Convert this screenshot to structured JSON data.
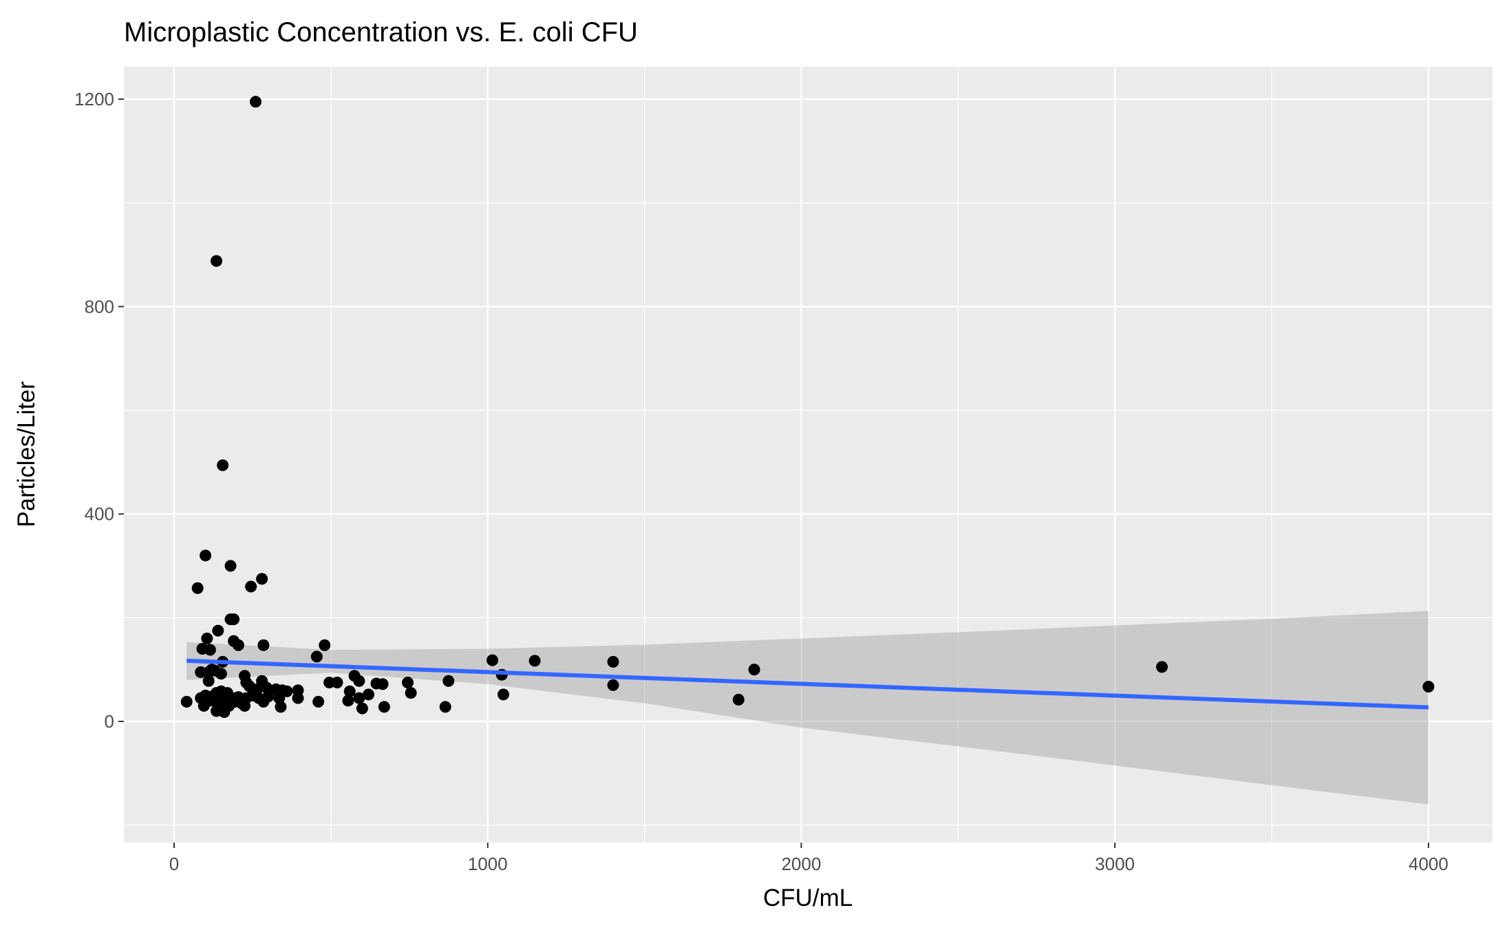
{
  "chart_data": {
    "type": "scatter",
    "title": "Microplastic Concentration vs. E. coli CFU",
    "xlabel": "CFU/mL",
    "ylabel": "Particles/Liter",
    "xlim": [
      -160,
      4160
    ],
    "ylim": [
      -225,
      1265
    ],
    "x_ticks": [
      0,
      1000,
      2000,
      3000,
      4000
    ],
    "x_tick_labels": [
      "0",
      "1000",
      "2000",
      "3000",
      "4000"
    ],
    "y_ticks": [
      0,
      400,
      800,
      1200
    ],
    "y_tick_labels": [
      "0",
      "400",
      "800",
      "1200"
    ],
    "x_minor_gridlines": [
      500,
      1500,
      2500,
      3500
    ],
    "y_minor_gridlines": [
      -200,
      200,
      600,
      1000
    ],
    "grid": true,
    "panel_background": "#ebebeb",
    "grid_color": "#ffffff",
    "point_color": "#000000",
    "points": [
      [
        260,
        1195
      ],
      [
        135,
        888
      ],
      [
        155,
        494
      ],
      [
        100,
        320
      ],
      [
        180,
        300
      ],
      [
        280,
        275
      ],
      [
        245,
        260
      ],
      [
        75,
        257
      ],
      [
        180,
        197
      ],
      [
        190,
        197
      ],
      [
        140,
        175
      ],
      [
        105,
        160
      ],
      [
        190,
        155
      ],
      [
        205,
        147
      ],
      [
        285,
        147
      ],
      [
        480,
        147
      ],
      [
        90,
        140
      ],
      [
        115,
        138
      ],
      [
        455,
        125
      ],
      [
        155,
        115
      ],
      [
        1015,
        118
      ],
      [
        1150,
        117
      ],
      [
        1400,
        115
      ],
      [
        3150,
        105
      ],
      [
        1850,
        100
      ],
      [
        120,
        100
      ],
      [
        85,
        95
      ],
      [
        110,
        95
      ],
      [
        130,
        98
      ],
      [
        150,
        92
      ],
      [
        225,
        88
      ],
      [
        1045,
        90
      ],
      [
        575,
        88
      ],
      [
        110,
        78
      ],
      [
        230,
        75
      ],
      [
        280,
        78
      ],
      [
        495,
        75
      ],
      [
        520,
        75
      ],
      [
        590,
        78
      ],
      [
        645,
        73
      ],
      [
        665,
        72
      ],
      [
        745,
        75
      ],
      [
        875,
        78
      ],
      [
        1400,
        70
      ],
      [
        4000,
        67
      ],
      [
        240,
        68
      ],
      [
        265,
        62
      ],
      [
        295,
        65
      ],
      [
        325,
        62
      ],
      [
        345,
        60
      ],
      [
        360,
        58
      ],
      [
        395,
        60
      ],
      [
        135,
        55
      ],
      [
        150,
        58
      ],
      [
        170,
        55
      ],
      [
        560,
        58
      ],
      [
        755,
        55
      ],
      [
        1050,
        52
      ],
      [
        620,
        52
      ],
      [
        100,
        50
      ],
      [
        120,
        48
      ],
      [
        140,
        45
      ],
      [
        160,
        50
      ],
      [
        185,
        45
      ],
      [
        205,
        47
      ],
      [
        230,
        45
      ],
      [
        250,
        50
      ],
      [
        270,
        45
      ],
      [
        300,
        48
      ],
      [
        335,
        45
      ],
      [
        85,
        45
      ],
      [
        395,
        45
      ],
      [
        590,
        45
      ],
      [
        555,
        40
      ],
      [
        1800,
        42
      ],
      [
        40,
        38
      ],
      [
        115,
        40
      ],
      [
        165,
        35
      ],
      [
        195,
        38
      ],
      [
        215,
        35
      ],
      [
        285,
        38
      ],
      [
        460,
        38
      ],
      [
        95,
        30
      ],
      [
        140,
        32
      ],
      [
        175,
        30
      ],
      [
        225,
        30
      ],
      [
        340,
        28
      ],
      [
        600,
        25
      ],
      [
        670,
        28
      ],
      [
        865,
        28
      ],
      [
        135,
        20
      ],
      [
        150,
        22
      ],
      [
        160,
        18
      ]
    ],
    "trend_line": {
      "color": "#3366ff",
      "x": [
        40,
        4000
      ],
      "y": [
        117,
        27
      ]
    },
    "confidence_band": {
      "fill": "#999999",
      "opacity": 0.4,
      "upper": [
        [
          40,
          153
        ],
        [
          500,
          138
        ],
        [
          1000,
          140
        ],
        [
          1500,
          148
        ],
        [
          2000,
          160
        ],
        [
          2500,
          172
        ],
        [
          3000,
          185
        ],
        [
          3500,
          198
        ],
        [
          4000,
          213
        ]
      ],
      "lower": [
        [
          40,
          80
        ],
        [
          500,
          94
        ],
        [
          1000,
          72
        ],
        [
          1500,
          35
        ],
        [
          2000,
          -12
        ],
        [
          2500,
          -48
        ],
        [
          3000,
          -85
        ],
        [
          3500,
          -123
        ],
        [
          4000,
          -160
        ]
      ]
    }
  }
}
